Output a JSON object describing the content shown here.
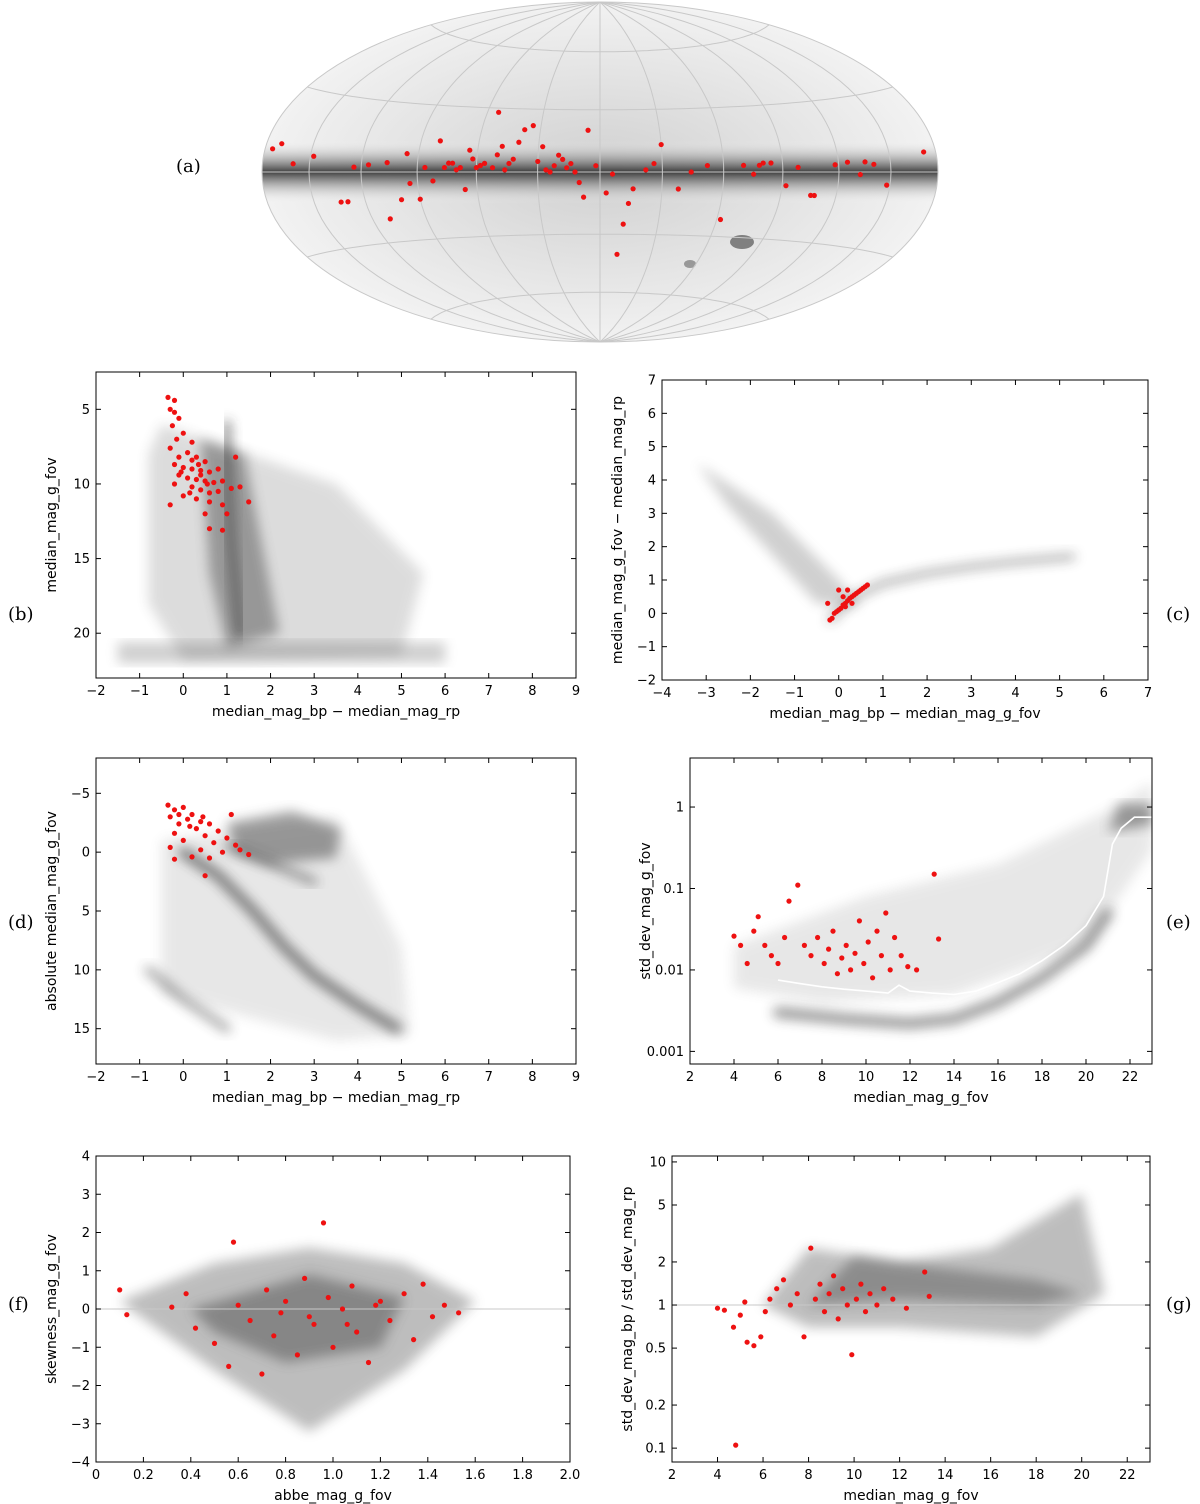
{
  "colors": {
    "highlight": "#ee1111",
    "density": "#333333",
    "reference_line": "#c8c8c8",
    "median_curve": "#ffffff"
  },
  "chart_data": [
    {
      "id": "a",
      "label": "(a)",
      "type": "scatter",
      "projection": "hammer-aitoff",
      "x_range_deg": [
        -180,
        180
      ],
      "y_range_deg": [
        -90,
        90
      ],
      "points": [
        [
          -172,
          7
        ],
        [
          -148,
          -5
        ],
        [
          -140,
          3
        ],
        [
          -135,
          4
        ],
        [
          -132,
          -1
        ],
        [
          -125,
          4
        ],
        [
          -118,
          3
        ],
        [
          -108,
          -10
        ],
        [
          -106,
          -10
        ],
        [
          -98,
          2
        ],
        [
          -92,
          -6
        ],
        [
          -84,
          4
        ],
        [
          -80,
          4
        ],
        [
          -78,
          3
        ],
        [
          -75,
          -1
        ],
        [
          -70,
          3
        ],
        [
          -62,
          -22
        ],
        [
          -52,
          3
        ],
        [
          -44,
          0
        ],
        [
          -38,
          -8
        ],
        [
          -30,
          13
        ],
        [
          -26,
          4
        ],
        [
          -22,
          1
        ],
        [
          -16,
          -8
        ],
        [
          -14,
          -15
        ],
        [
          -12,
          -25
        ],
        [
          -10,
          -40
        ],
        [
          -6,
          -1
        ],
        [
          -3,
          -10
        ],
        [
          2,
          3
        ],
        [
          6,
          20
        ],
        [
          8,
          -12
        ],
        [
          10,
          -5
        ],
        [
          12,
          0
        ],
        [
          14,
          4
        ],
        [
          16,
          2
        ],
        [
          18,
          6
        ],
        [
          20,
          8
        ],
        [
          22,
          3
        ],
        [
          24,
          0
        ],
        [
          26,
          1
        ],
        [
          28,
          12
        ],
        [
          30,
          5
        ],
        [
          34,
          22
        ],
        [
          38,
          20
        ],
        [
          40,
          14
        ],
        [
          42,
          6
        ],
        [
          44,
          4
        ],
        [
          46,
          1
        ],
        [
          48,
          12
        ],
        [
          50,
          8
        ],
        [
          52,
          2
        ],
        [
          54,
          28
        ],
        [
          56,
          4
        ],
        [
          58,
          3
        ],
        [
          60,
          2
        ],
        [
          62,
          6
        ],
        [
          64,
          10
        ],
        [
          66,
          -8
        ],
        [
          68,
          2
        ],
        [
          70,
          1
        ],
        [
          72,
          4
        ],
        [
          74,
          4
        ],
        [
          76,
          2
        ],
        [
          80,
          14
        ],
        [
          82,
          -4
        ],
        [
          86,
          2
        ],
        [
          90,
          -12
        ],
        [
          94,
          -5
        ],
        [
          96,
          8
        ],
        [
          100,
          -12
        ],
        [
          106,
          4
        ],
        [
          110,
          -20
        ],
        [
          116,
          3
        ],
        [
          124,
          2
        ],
        [
          130,
          -12
        ],
        [
          134,
          -12
        ],
        [
          148,
          6
        ],
        [
          160,
          3
        ],
        [
          170,
          10
        ],
        [
          175,
          8
        ]
      ]
    },
    {
      "id": "b",
      "label": "(b)",
      "type": "scatter",
      "xlabel": "median_mag_bp − median_mag_rp",
      "ylabel": "median_mag_g_fov",
      "xlim": [
        -2,
        9
      ],
      "ylim": [
        23,
        2.5
      ],
      "y_inverted": true,
      "xticks": [
        "−2",
        "−1",
        "0",
        "1",
        "2",
        "3",
        "4",
        "5",
        "6",
        "7",
        "8",
        "9"
      ],
      "yticks": [
        "5",
        "10",
        "15",
        "20"
      ],
      "points": [
        [
          -0.35,
          4.2
        ],
        [
          -0.2,
          4.4
        ],
        [
          -0.3,
          5.0
        ],
        [
          -0.2,
          5.2
        ],
        [
          -0.1,
          5.6
        ],
        [
          -0.25,
          6.1
        ],
        [
          0.0,
          6.6
        ],
        [
          -0.15,
          7.0
        ],
        [
          0.2,
          7.2
        ],
        [
          -0.3,
          7.6
        ],
        [
          0.1,
          7.9
        ],
        [
          -0.1,
          8.2
        ],
        [
          0.3,
          8.2
        ],
        [
          0.5,
          8.5
        ],
        [
          -0.2,
          8.7
        ],
        [
          0.0,
          8.9
        ],
        [
          0.2,
          9.0
        ],
        [
          0.4,
          9.1
        ],
        [
          0.6,
          9.2
        ],
        [
          -0.1,
          9.4
        ],
        [
          0.1,
          9.6
        ],
        [
          0.3,
          9.7
        ],
        [
          0.5,
          9.8
        ],
        [
          0.7,
          9.9
        ],
        [
          0.9,
          9.8
        ],
        [
          -0.2,
          10.0
        ],
        [
          0.2,
          10.2
        ],
        [
          0.4,
          10.4
        ],
        [
          0.6,
          10.6
        ],
        [
          0.8,
          10.5
        ],
        [
          1.1,
          10.3
        ],
        [
          1.3,
          10.2
        ],
        [
          1.2,
          8.2
        ],
        [
          0.0,
          10.8
        ],
        [
          0.3,
          11.0
        ],
        [
          0.6,
          11.2
        ],
        [
          0.9,
          11.4
        ],
        [
          1.5,
          11.2
        ],
        [
          -0.3,
          11.4
        ],
        [
          1.0,
          12.0
        ],
        [
          0.5,
          12.0
        ],
        [
          0.6,
          13.0
        ],
        [
          0.9,
          13.1
        ],
        [
          0.2,
          8.4
        ],
        [
          0.4,
          9.4
        ],
        [
          0.8,
          9.0
        ],
        [
          -0.05,
          9.2
        ],
        [
          0.15,
          10.6
        ],
        [
          0.55,
          10.0
        ],
        [
          0.35,
          8.7
        ]
      ]
    },
    {
      "id": "c",
      "label": "(c)",
      "type": "scatter",
      "xlabel": "median_mag_bp − median_mag_g_fov",
      "ylabel": "median_mag_g_fov − median_mag_rp",
      "xlim": [
        -4,
        7
      ],
      "ylim": [
        -2,
        7
      ],
      "xticks": [
        "−4",
        "−3",
        "−2",
        "−1",
        "0",
        "1",
        "2",
        "3",
        "4",
        "5",
        "6",
        "7"
      ],
      "yticks": [
        "−2",
        "−1",
        "0",
        "1",
        "2",
        "3",
        "4",
        "5",
        "6",
        "7"
      ],
      "points": [
        [
          -0.2,
          -0.2
        ],
        [
          -0.1,
          0.0
        ],
        [
          0.0,
          0.1
        ],
        [
          0.05,
          0.15
        ],
        [
          0.1,
          0.25
        ],
        [
          0.15,
          0.3
        ],
        [
          0.2,
          0.38
        ],
        [
          0.25,
          0.45
        ],
        [
          0.3,
          0.5
        ],
        [
          0.35,
          0.55
        ],
        [
          0.4,
          0.6
        ],
        [
          0.45,
          0.65
        ],
        [
          0.5,
          0.7
        ],
        [
          0.55,
          0.75
        ],
        [
          0.6,
          0.8
        ],
        [
          0.65,
          0.85
        ],
        [
          -0.25,
          0.3
        ],
        [
          0.0,
          0.7
        ],
        [
          0.2,
          0.7
        ],
        [
          -0.15,
          -0.15
        ],
        [
          0.1,
          0.5
        ],
        [
          0.3,
          0.3
        ],
        [
          -0.05,
          0.05
        ],
        [
          0.15,
          0.2
        ]
      ]
    },
    {
      "id": "d",
      "label": "(d)",
      "type": "scatter",
      "xlabel": "median_mag_bp − median_mag_rp",
      "ylabel": "absolute median_mag_g_fov",
      "xlim": [
        -2,
        9
      ],
      "ylim": [
        18,
        -8
      ],
      "y_inverted": true,
      "xticks": [
        "−2",
        "−1",
        "0",
        "1",
        "2",
        "3",
        "4",
        "5",
        "6",
        "7",
        "8",
        "9"
      ],
      "yticks": [
        "−5",
        "0",
        "5",
        "10",
        "15"
      ],
      "points": [
        [
          -0.35,
          -4.0
        ],
        [
          -0.2,
          -3.6
        ],
        [
          0.0,
          -3.8
        ],
        [
          0.2,
          -3.2
        ],
        [
          -0.3,
          -3.0
        ],
        [
          0.1,
          -2.8
        ],
        [
          0.4,
          -2.6
        ],
        [
          0.6,
          -2.4
        ],
        [
          -0.1,
          -2.4
        ],
        [
          0.3,
          -2.0
        ],
        [
          0.8,
          -1.8
        ],
        [
          -0.2,
          -1.6
        ],
        [
          0.5,
          -1.4
        ],
        [
          1.0,
          -1.2
        ],
        [
          0.0,
          -1.0
        ],
        [
          0.7,
          -0.8
        ],
        [
          1.2,
          -0.6
        ],
        [
          -0.3,
          -0.4
        ],
        [
          0.4,
          -0.2
        ],
        [
          0.9,
          0.0
        ],
        [
          1.5,
          0.2
        ],
        [
          0.2,
          0.4
        ],
        [
          1.1,
          -3.2
        ],
        [
          0.5,
          2.0
        ],
        [
          -0.2,
          0.6
        ],
        [
          0.6,
          0.5
        ],
        [
          1.3,
          -0.2
        ],
        [
          0.15,
          -2.2
        ],
        [
          0.45,
          -3.0
        ],
        [
          -0.1,
          -3.2
        ]
      ]
    },
    {
      "id": "e",
      "label": "(e)",
      "type": "scatter",
      "xlabel": "median_mag_g_fov",
      "ylabel": "std_dev_mag_g_fov",
      "xlim": [
        2,
        23
      ],
      "ylim": [
        0.0007,
        4
      ],
      "y_scale": "log",
      "xticks": [
        "2",
        "4",
        "6",
        "8",
        "10",
        "12",
        "14",
        "16",
        "18",
        "20",
        "22"
      ],
      "yticks": [
        "0.001",
        "0.01",
        "0.1",
        "1"
      ],
      "median_curve": [
        [
          6,
          0.0075
        ],
        [
          7,
          0.0068
        ],
        [
          8,
          0.0062
        ],
        [
          9,
          0.0058
        ],
        [
          10,
          0.0055
        ],
        [
          11,
          0.0052
        ],
        [
          11.5,
          0.0065
        ],
        [
          12,
          0.0055
        ],
        [
          13,
          0.0052
        ],
        [
          14,
          0.005
        ],
        [
          15,
          0.0055
        ],
        [
          16,
          0.007
        ],
        [
          17,
          0.009
        ],
        [
          18,
          0.013
        ],
        [
          19,
          0.02
        ],
        [
          20,
          0.035
        ],
        [
          20.8,
          0.08
        ],
        [
          21.2,
          0.35
        ],
        [
          21.6,
          0.55
        ],
        [
          22.2,
          0.75
        ],
        [
          23,
          0.75
        ]
      ],
      "points": [
        [
          4.0,
          0.026
        ],
        [
          4.3,
          0.02
        ],
        [
          4.6,
          0.012
        ],
        [
          4.9,
          0.03
        ],
        [
          5.1,
          0.045
        ],
        [
          5.4,
          0.02
        ],
        [
          5.7,
          0.015
        ],
        [
          6.0,
          0.012
        ],
        [
          6.3,
          0.025
        ],
        [
          6.5,
          0.07
        ],
        [
          6.9,
          0.11
        ],
        [
          7.2,
          0.02
        ],
        [
          7.5,
          0.015
        ],
        [
          7.8,
          0.025
        ],
        [
          8.1,
          0.012
        ],
        [
          8.3,
          0.018
        ],
        [
          8.5,
          0.03
        ],
        [
          8.7,
          0.009
        ],
        [
          8.9,
          0.014
        ],
        [
          9.1,
          0.02
        ],
        [
          9.3,
          0.01
        ],
        [
          9.5,
          0.016
        ],
        [
          9.7,
          0.04
        ],
        [
          9.9,
          0.012
        ],
        [
          10.1,
          0.022
        ],
        [
          10.3,
          0.008
        ],
        [
          10.5,
          0.03
        ],
        [
          10.7,
          0.015
        ],
        [
          10.9,
          0.05
        ],
        [
          11.1,
          0.01
        ],
        [
          11.3,
          0.025
        ],
        [
          11.6,
          0.015
        ],
        [
          11.9,
          0.011
        ],
        [
          12.3,
          0.01
        ],
        [
          13.1,
          0.15
        ],
        [
          13.3,
          0.024
        ]
      ]
    },
    {
      "id": "f",
      "label": "(f)",
      "type": "scatter",
      "xlabel": "abbe_mag_g_fov",
      "ylabel": "skewness_mag_g_fov",
      "xlim": [
        0,
        2.0
      ],
      "ylim": [
        -4,
        4
      ],
      "xticks": [
        "0",
        "0.2",
        "0.4",
        "0.6",
        "0.8",
        "1.0",
        "1.2",
        "1.4",
        "1.6",
        "1.8",
        "2.0"
      ],
      "yticks": [
        "−4",
        "−3",
        "−2",
        "−1",
        "0",
        "1",
        "2",
        "3",
        "4"
      ],
      "points": [
        [
          0.1,
          0.5
        ],
        [
          0.13,
          -0.15
        ],
        [
          0.32,
          0.05
        ],
        [
          0.38,
          0.4
        ],
        [
          0.42,
          -0.5
        ],
        [
          0.5,
          -0.9
        ],
        [
          0.56,
          -1.5
        ],
        [
          0.58,
          1.75
        ],
        [
          0.6,
          0.1
        ],
        [
          0.65,
          -0.3
        ],
        [
          0.7,
          -1.7
        ],
        [
          0.72,
          0.5
        ],
        [
          0.75,
          -0.7
        ],
        [
          0.8,
          0.2
        ],
        [
          0.85,
          -1.2
        ],
        [
          0.88,
          0.8
        ],
        [
          0.92,
          -0.4
        ],
        [
          0.96,
          2.25
        ],
        [
          0.98,
          0.3
        ],
        [
          1.0,
          -1.0
        ],
        [
          1.04,
          0.0
        ],
        [
          1.08,
          0.6
        ],
        [
          1.1,
          -0.6
        ],
        [
          1.15,
          -1.4
        ],
        [
          1.2,
          0.2
        ],
        [
          1.24,
          -0.3
        ],
        [
          1.3,
          0.4
        ],
        [
          1.34,
          -0.8
        ],
        [
          1.38,
          0.65
        ],
        [
          1.42,
          -0.2
        ],
        [
          1.47,
          0.1
        ],
        [
          1.53,
          -0.1
        ],
        [
          0.9,
          -0.2
        ],
        [
          1.06,
          -0.4
        ],
        [
          0.78,
          -0.1
        ],
        [
          1.18,
          0.1
        ]
      ]
    },
    {
      "id": "g",
      "label": "(g)",
      "type": "scatter",
      "xlabel": "median_mag_g_fov",
      "ylabel": "std_dev_mag_bp / std_dev_mag_rp",
      "xlim": [
        2,
        23
      ],
      "ylim": [
        0.08,
        11
      ],
      "y_scale": "log",
      "xticks": [
        "2",
        "4",
        "6",
        "8",
        "10",
        "12",
        "14",
        "16",
        "18",
        "20",
        "22"
      ],
      "yticks": [
        "0.1",
        "0.2",
        "0.5",
        "1",
        "2",
        "5",
        "10"
      ],
      "reference_y": 1,
      "points": [
        [
          4.0,
          0.95
        ],
        [
          4.3,
          0.92
        ],
        [
          4.7,
          0.7
        ],
        [
          4.8,
          0.105
        ],
        [
          5.0,
          0.85
        ],
        [
          5.2,
          1.05
        ],
        [
          5.3,
          0.55
        ],
        [
          5.6,
          0.52
        ],
        [
          5.9,
          0.6
        ],
        [
          6.1,
          0.9
        ],
        [
          6.3,
          1.1
        ],
        [
          6.6,
          1.3
        ],
        [
          6.9,
          1.5
        ],
        [
          7.2,
          1.0
        ],
        [
          7.5,
          1.2
        ],
        [
          7.8,
          0.6
        ],
        [
          8.1,
          2.5
        ],
        [
          8.3,
          1.1
        ],
        [
          8.5,
          1.4
        ],
        [
          8.7,
          0.9
        ],
        [
          8.9,
          1.2
        ],
        [
          9.1,
          1.6
        ],
        [
          9.3,
          0.8
        ],
        [
          9.5,
          1.3
        ],
        [
          9.7,
          1.0
        ],
        [
          9.9,
          0.45
        ],
        [
          10.1,
          1.1
        ],
        [
          10.3,
          1.4
        ],
        [
          10.5,
          0.9
        ],
        [
          10.7,
          1.2
        ],
        [
          11.0,
          1.0
        ],
        [
          11.3,
          1.3
        ],
        [
          11.7,
          1.1
        ],
        [
          12.3,
          0.95
        ],
        [
          13.1,
          1.7
        ],
        [
          13.3,
          1.15
        ]
      ]
    }
  ]
}
